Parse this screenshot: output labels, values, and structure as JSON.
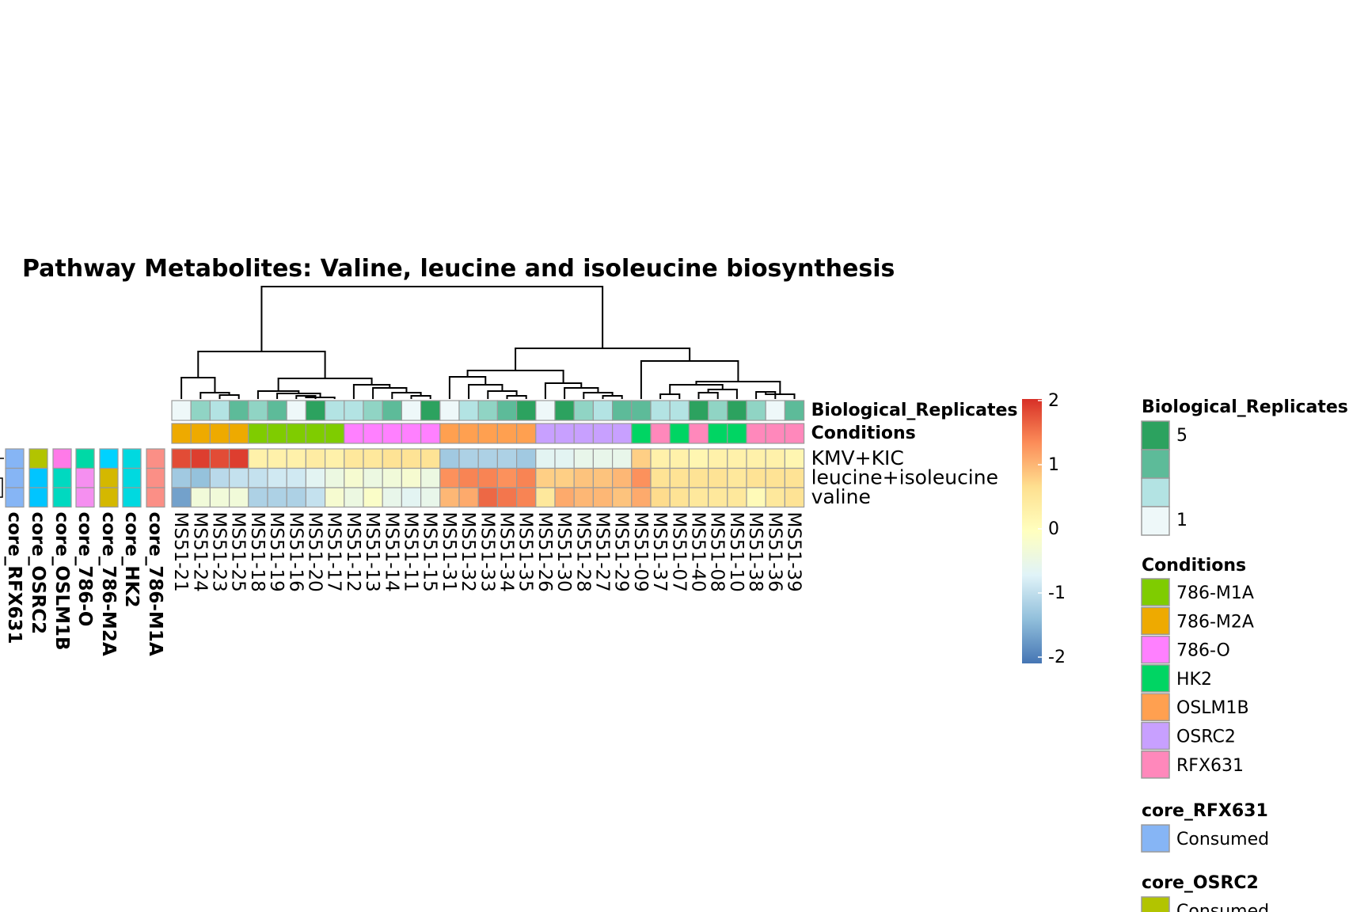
{
  "chart_data": {
    "type": "heatmap",
    "title": "Pathway  Metabolites:  Valine, leucine and isoleucine biosynthesis",
    "rows": [
      "KMV+KIC",
      "leucine+isoleucine",
      "valine"
    ],
    "columns": [
      "MS51-21",
      "MS51-24",
      "MS51-23",
      "MS51-25",
      "MS51-18",
      "MS51-19",
      "MS51-16",
      "MS51-20",
      "MS51-17",
      "MS51-12",
      "MS51-13",
      "MS51-14",
      "MS51-11",
      "MS51-15",
      "MS51-31",
      "MS51-32",
      "MS51-33",
      "MS51-34",
      "MS51-35",
      "MS51-26",
      "MS51-30",
      "MS51-28",
      "MS51-27",
      "MS51-29",
      "MS51-09",
      "MS51-37",
      "MS51-07",
      "MS51-40",
      "MS51-08",
      "MS51-10",
      "MS51-38",
      "MS51-36",
      "MS51-39"
    ],
    "values": [
      [
        1.8,
        1.9,
        1.8,
        1.9,
        0.3,
        0.3,
        0.3,
        0.4,
        0.3,
        0.5,
        0.5,
        0.6,
        0.6,
        0.6,
        -1.2,
        -1.1,
        -1.1,
        -1.1,
        -1.2,
        -0.6,
        -0.6,
        -0.5,
        -0.5,
        -0.5,
        0.8,
        0.3,
        0.3,
        0.2,
        0.3,
        0.3,
        0.3,
        0.3,
        0.2
      ],
      [
        -1.2,
        -1.3,
        -1.0,
        -0.9,
        -0.9,
        -0.8,
        -0.8,
        -0.6,
        -0.4,
        -0.2,
        -0.4,
        -0.3,
        -0.2,
        -0.4,
        1.3,
        1.4,
        1.4,
        1.3,
        1.4,
        0.8,
        0.8,
        0.9,
        0.9,
        1.0,
        1.3,
        0.6,
        0.6,
        0.6,
        0.6,
        0.5,
        0.6,
        0.6,
        0.6
      ],
      [
        -1.6,
        -0.3,
        -0.3,
        -0.3,
        -1.1,
        -1.1,
        -1.1,
        -0.9,
        -0.2,
        -0.4,
        -0.1,
        -0.5,
        -0.6,
        -0.5,
        1.0,
        1.1,
        1.6,
        1.5,
        1.4,
        0.5,
        1.1,
        1.0,
        1.0,
        0.9,
        1.1,
        0.7,
        0.6,
        0.5,
        0.5,
        0.5,
        0.1,
        0.5,
        0.6
      ]
    ],
    "color_scale": {
      "ticks": [
        2,
        1,
        0,
        -1,
        -2
      ],
      "tick_labels": [
        "2",
        "1",
        "0",
        "-1",
        "-2"
      ],
      "colors": [
        "#4575b4",
        "#91bfdb",
        "#e0f3f8",
        "#ffffbf",
        "#fee090",
        "#fc8d59",
        "#d73027"
      ]
    },
    "column_annotations": {
      "Biological_Replicates": [
        1,
        3,
        2,
        4,
        3,
        4,
        1,
        5,
        2,
        2,
        3,
        4,
        1,
        5,
        1,
        2,
        3,
        4,
        5,
        1,
        5,
        3,
        2,
        4,
        4,
        2,
        2,
        5,
        3,
        5,
        3,
        1,
        4
      ],
      "Conditions": [
        "786-M2A",
        "786-M2A",
        "786-M2A",
        "786-M2A",
        "786-M1A",
        "786-M1A",
        "786-M1A",
        "786-M1A",
        "786-M1A",
        "786-O",
        "786-O",
        "786-O",
        "786-O",
        "786-O",
        "OSLM1B",
        "OSLM1B",
        "OSLM1B",
        "OSLM1B",
        "OSLM1B",
        "OSRC2",
        "OSRC2",
        "OSRC2",
        "OSRC2",
        "OSRC2",
        "HK2",
        "RFX631",
        "HK2",
        "RFX631",
        "HK2",
        "HK2",
        "RFX631",
        "RFX631",
        "RFX631"
      ]
    },
    "row_annotations": {
      "names": [
        "core_RFX631",
        "core_OSRC2",
        "core_OSLM1B",
        "core_786-O",
        "core_786-M2A",
        "core_HK2",
        "core_786-M1A"
      ],
      "cells": [
        [
          "#86b5f5",
          "#86b5f5",
          "#86b5f5"
        ],
        [
          "#b2c400",
          "#00c5ff",
          "#00c5ff"
        ],
        [
          "#ff7ae8",
          "#00d9c0",
          "#00d9c0"
        ],
        [
          "#00d9a6",
          "#f58ff0",
          "#f58ff0"
        ],
        [
          "#00d2ff",
          "#d4b800",
          "#d4b800"
        ],
        [
          "#00d9e0",
          "#00d9e0",
          "#00d9e0"
        ],
        [
          "#fb8f86",
          "#fb8f86",
          "#fb8f86"
        ]
      ]
    },
    "annotation_labels": [
      "Biological_Replicates",
      "Conditions"
    ],
    "replicate_colors": {
      "1": "#eef8f9",
      "2": "#b3e3e3",
      "3": "#90d4c4",
      "4": "#5dbb99",
      "5": "#2ca25f"
    },
    "condition_colors": {
      "786-M1A": "#7fcc00",
      "786-M2A": "#eeaa00",
      "786-O": "#ff80ff",
      "HK2": "#00d563",
      "OSLM1B": "#ffa050",
      "OSRC2": "#c8a0ff",
      "RFX631": "#ff88bb"
    },
    "legends": {
      "biological_replicates": {
        "title": "Biological_Replicates",
        "max_label": "5",
        "min_label": "1"
      },
      "conditions": {
        "title": "Conditions",
        "items": [
          "786-M1A",
          "786-M2A",
          "786-O",
          "HK2",
          "OSLM1B",
          "OSRC2",
          "RFX631"
        ]
      },
      "core_rfx631": {
        "title": "core_RFX631",
        "item": "Consumed",
        "color": "#86b5f5"
      },
      "core_osrc2": {
        "title": "core_OSRC2",
        "item": "Consumed",
        "color": "#b2c400"
      }
    }
  }
}
